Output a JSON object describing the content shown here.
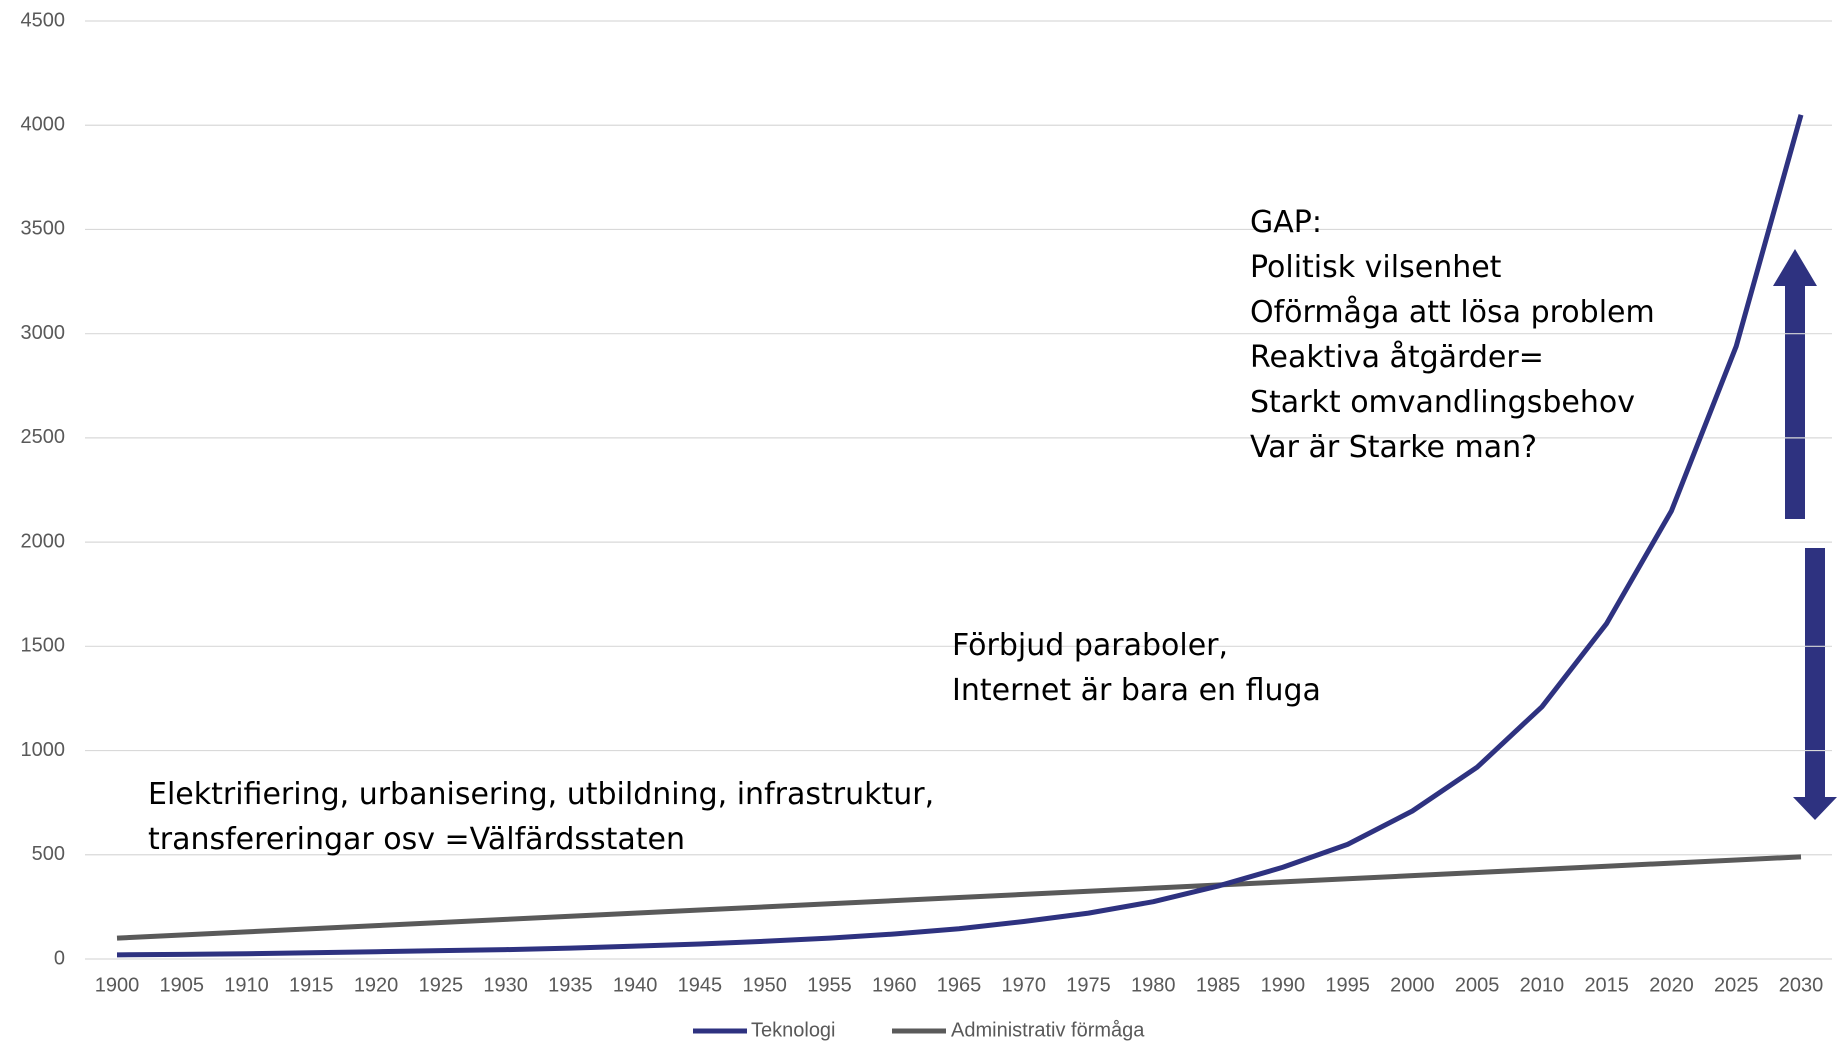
{
  "chart_data": {
    "type": "line",
    "x": [
      1900,
      1905,
      1910,
      1915,
      1920,
      1925,
      1930,
      1935,
      1940,
      1945,
      1950,
      1955,
      1960,
      1965,
      1970,
      1975,
      1980,
      1985,
      1990,
      1995,
      2000,
      2005,
      2010,
      2015,
      2020,
      2025,
      2030
    ],
    "xlim": [
      1900,
      2030
    ],
    "xticks": [
      1900,
      1905,
      1910,
      1915,
      1920,
      1925,
      1930,
      1935,
      1940,
      1945,
      1950,
      1955,
      1960,
      1965,
      1970,
      1975,
      1980,
      1985,
      1990,
      1995,
      2000,
      2005,
      2010,
      2015,
      2020,
      2025,
      2030
    ],
    "ylim": [
      0,
      4500
    ],
    "yticks": [
      0,
      500,
      1000,
      1500,
      2000,
      2500,
      3000,
      3500,
      4000,
      4500
    ],
    "grid": true,
    "legend": "bottom",
    "series": [
      {
        "name": "Teknologi",
        "color": "#2e3280",
        "values": [
          20,
          22,
          25,
          30,
          35,
          40,
          45,
          52,
          62,
          72,
          85,
          100,
          120,
          145,
          180,
          220,
          275,
          350,
          440,
          550,
          710,
          920,
          1210,
          1610,
          2150,
          2940,
          4050
        ]
      },
      {
        "name": "Administrativ förmåga",
        "color": "#5a5a5a",
        "values": [
          100,
          115,
          130,
          145,
          160,
          175,
          190,
          205,
          220,
          235,
          250,
          265,
          280,
          295,
          310,
          325,
          340,
          355,
          370,
          385,
          400,
          415,
          430,
          445,
          460,
          475,
          490
        ]
      }
    ],
    "annotations": [
      [
        "GAP:",
        "Politisk vilsenhet",
        "Oförmåga att lösa problem",
        "Reaktiva åtgärder=",
        "Starkt omvandlingsbehov",
        "Var är Starke man?"
      ],
      [
        "Förbjud paraboler,",
        "Internet är bara en fluga"
      ],
      [
        "Elektrifiering, urbanisering, utbildning, infrastruktur,",
        "transfereringar osv  =Välfärdsstaten"
      ]
    ]
  }
}
